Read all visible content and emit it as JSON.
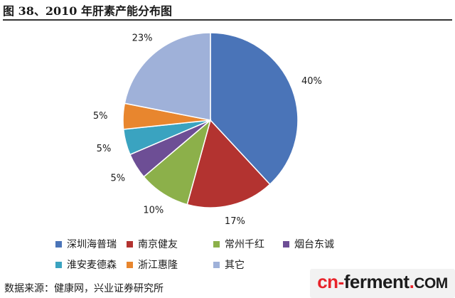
{
  "page": {
    "title": "图 38、2010 年肝素产能分布图",
    "source": "数据来源：健康网，兴业证券研究所"
  },
  "watermark": {
    "cn": "cn-",
    "ferment": "ferment",
    "dot": ".",
    "com": "COM"
  },
  "chart_data": {
    "type": "pie",
    "title": "",
    "legend_position": "bottom",
    "slices": [
      {
        "name": "深圳海普瑞",
        "value": 40,
        "label": "40%",
        "color": "#4a74b8"
      },
      {
        "name": "南京健友",
        "value": 17,
        "label": "17%",
        "color": "#b33330"
      },
      {
        "name": "常州千红",
        "value": 10,
        "label": "10%",
        "color": "#8cb04a"
      },
      {
        "name": "烟台东诚",
        "value": 5,
        "label": "5%",
        "color": "#6d4e95"
      },
      {
        "name": "淮安麦德森",
        "value": 5,
        "label": "5%",
        "color": "#3aa3c0"
      },
      {
        "name": "浙江惠隆",
        "value": 5,
        "label": "5%",
        "color": "#e8862e"
      },
      {
        "name": "其它",
        "value": 23,
        "label": "23%",
        "color": "#9fb1d9"
      }
    ]
  }
}
